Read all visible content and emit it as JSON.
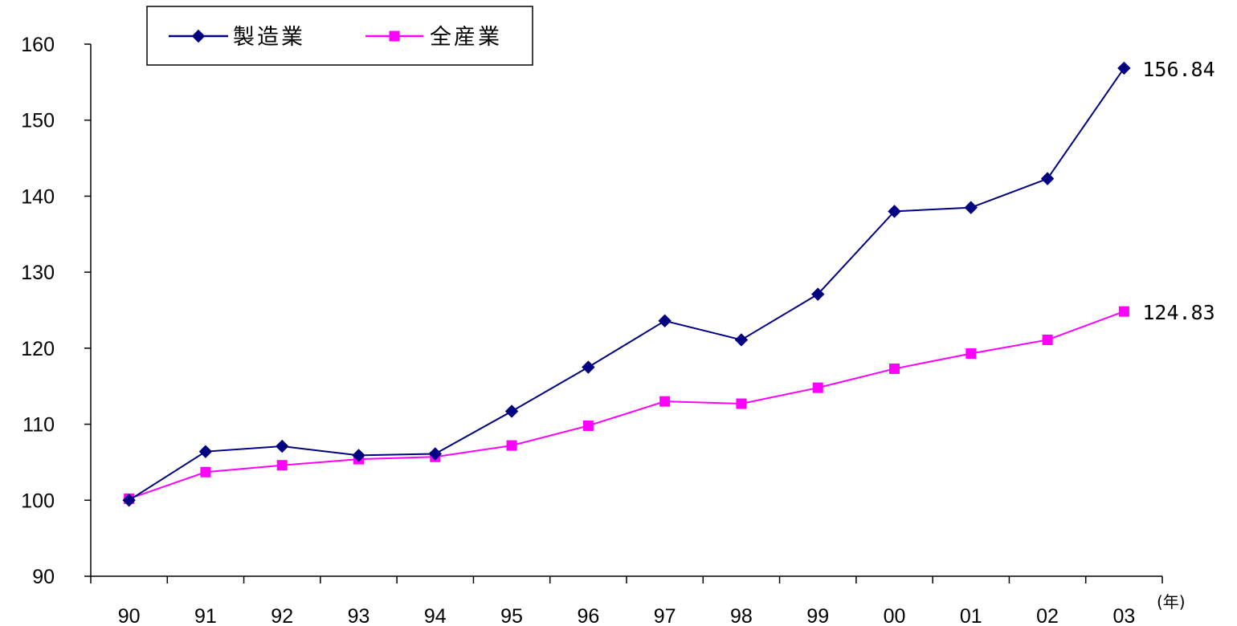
{
  "chart_data": {
    "type": "line",
    "title": "",
    "xlabel": "",
    "ylabel": "",
    "x_unit": "(年)",
    "categories": [
      "90",
      "91",
      "92",
      "93",
      "94",
      "95",
      "96",
      "97",
      "98",
      "99",
      "00",
      "01",
      "02",
      "03"
    ],
    "ylim": [
      90,
      160
    ],
    "yticks": [
      90,
      100,
      110,
      120,
      130,
      140,
      150,
      160
    ],
    "grid": false,
    "legend": "top-left",
    "series": [
      {
        "name": "製造業",
        "color": "#000080",
        "marker": "diamond",
        "values": [
          100,
          106.4,
          107.1,
          105.9,
          106.1,
          111.7,
          117.5,
          123.6,
          121.1,
          127.1,
          138.0,
          138.5,
          142.3,
          156.84
        ],
        "end_label": "156.84"
      },
      {
        "name": "全産業",
        "color": "#ff00ff",
        "marker": "square",
        "values": [
          100.2,
          103.7,
          104.6,
          105.4,
          105.7,
          107.2,
          109.8,
          113.0,
          112.7,
          114.8,
          117.3,
          119.3,
          121.1,
          124.83
        ],
        "end_label": "124.83"
      }
    ]
  }
}
